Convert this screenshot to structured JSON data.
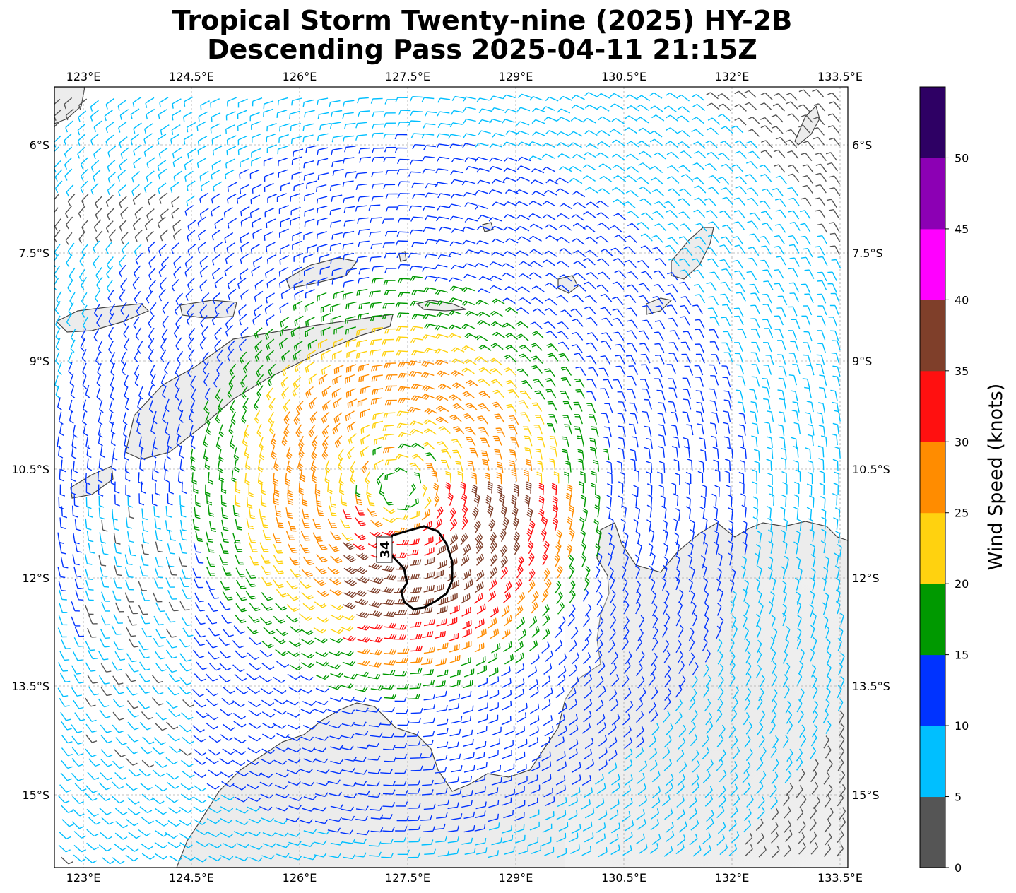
{
  "title_line1": "Tropical Storm Twenty-nine (2025) HY-2B",
  "title_line2": "Descending Pass 2025-04-11 21:15Z",
  "lon_ticks": [
    "123°E",
    "124.5°E",
    "126°E",
    "127.5°E",
    "129°E",
    "130.5°E",
    "132°E",
    "133.5°E"
  ],
  "lat_ticks": [
    "6°S",
    "7.5°S",
    "9°S",
    "10.5°S",
    "12°S",
    "13.5°S",
    "15°S"
  ],
  "contour_label": "34",
  "colorbar": {
    "title": "Wind Speed (knots)",
    "ticks": [
      "0",
      "5",
      "10",
      "15",
      "20",
      "25",
      "30",
      "35",
      "40",
      "45",
      "50"
    ],
    "colors": [
      "#555555",
      "#00bfff",
      "#0033ff",
      "#009900",
      "#ffd20f",
      "#ff8c00",
      "#ff1010",
      "#7f3f2a",
      "#ff00ff",
      "#8c00b4",
      "#2e0064"
    ]
  },
  "storm_center": {
    "lat": "10.8°S",
    "lon": "127.5°E"
  }
}
